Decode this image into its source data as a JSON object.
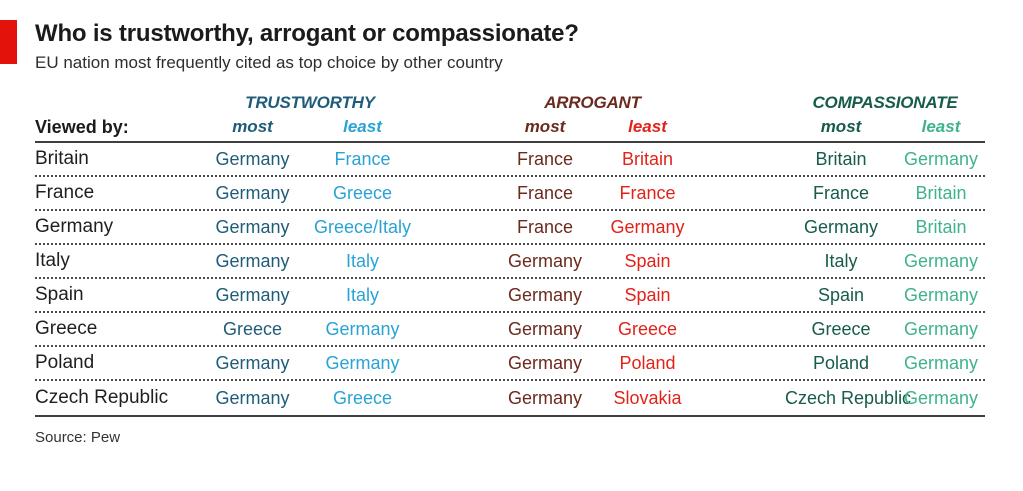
{
  "header": {
    "title": "Who is trustworthy, arrogant or compassionate?",
    "subtitle": "EU nation most frequently cited as top choice by other country"
  },
  "footer": {
    "source": "Source: Pew"
  },
  "colors": {
    "accent": "#E3120B",
    "trustworthy_most": "#1F5C7A",
    "trustworthy_least": "#29A3D5",
    "arrogant_most": "#6B2A1E",
    "arrogant_least": "#E2231A",
    "compassionate_most": "#165B4B",
    "compassionate_least": "#3FB389"
  },
  "chart_data": {
    "type": "table",
    "title": "Who is trustworthy, arrogant or compassionate?",
    "subtitle": "EU nation most frequently cited as top choice by other country",
    "source": "Source: Pew",
    "row_header": "Viewed by:",
    "groups": [
      {
        "label": "TRUSTWORTHY",
        "sub": [
          "most",
          "least"
        ]
      },
      {
        "label": "ARROGANT",
        "sub": [
          "most",
          "least"
        ]
      },
      {
        "label": "COMPASSIONATE",
        "sub": [
          "most",
          "least"
        ]
      }
    ],
    "rows": [
      {
        "viewed_by": "Britain",
        "trustworthy_most": "Germany",
        "trustworthy_least": "France",
        "arrogant_most": "France",
        "arrogant_least": "Britain",
        "compassionate_most": "Britain",
        "compassionate_least": "Germany"
      },
      {
        "viewed_by": "France",
        "trustworthy_most": "Germany",
        "trustworthy_least": "Greece",
        "arrogant_most": "France",
        "arrogant_least": "France",
        "compassionate_most": "France",
        "compassionate_least": "Britain"
      },
      {
        "viewed_by": "Germany",
        "trustworthy_most": "Germany",
        "trustworthy_least": "Greece/Italy",
        "arrogant_most": "France",
        "arrogant_least": "Germany",
        "compassionate_most": "Germany",
        "compassionate_least": "Britain"
      },
      {
        "viewed_by": "Italy",
        "trustworthy_most": "Germany",
        "trustworthy_least": "Italy",
        "arrogant_most": "Germany",
        "arrogant_least": "Spain",
        "compassionate_most": "Italy",
        "compassionate_least": "Germany"
      },
      {
        "viewed_by": "Spain",
        "trustworthy_most": "Germany",
        "trustworthy_least": "Italy",
        "arrogant_most": "Germany",
        "arrogant_least": "Spain",
        "compassionate_most": "Spain",
        "compassionate_least": "Germany"
      },
      {
        "viewed_by": "Greece",
        "trustworthy_most": "Greece",
        "trustworthy_least": "Germany",
        "arrogant_most": "Germany",
        "arrogant_least": "Greece",
        "compassionate_most": "Greece",
        "compassionate_least": "Germany"
      },
      {
        "viewed_by": "Poland",
        "trustworthy_most": "Germany",
        "trustworthy_least": "Germany",
        "arrogant_most": "Germany",
        "arrogant_least": "Poland",
        "compassionate_most": "Poland",
        "compassionate_least": "Germany"
      },
      {
        "viewed_by": "Czech Republic",
        "trustworthy_most": "Germany",
        "trustworthy_least": "Greece",
        "arrogant_most": "Germany",
        "arrogant_least": "Slovakia",
        "compassionate_most": "Czech Republic",
        "compassionate_least": "Germany"
      }
    ]
  }
}
